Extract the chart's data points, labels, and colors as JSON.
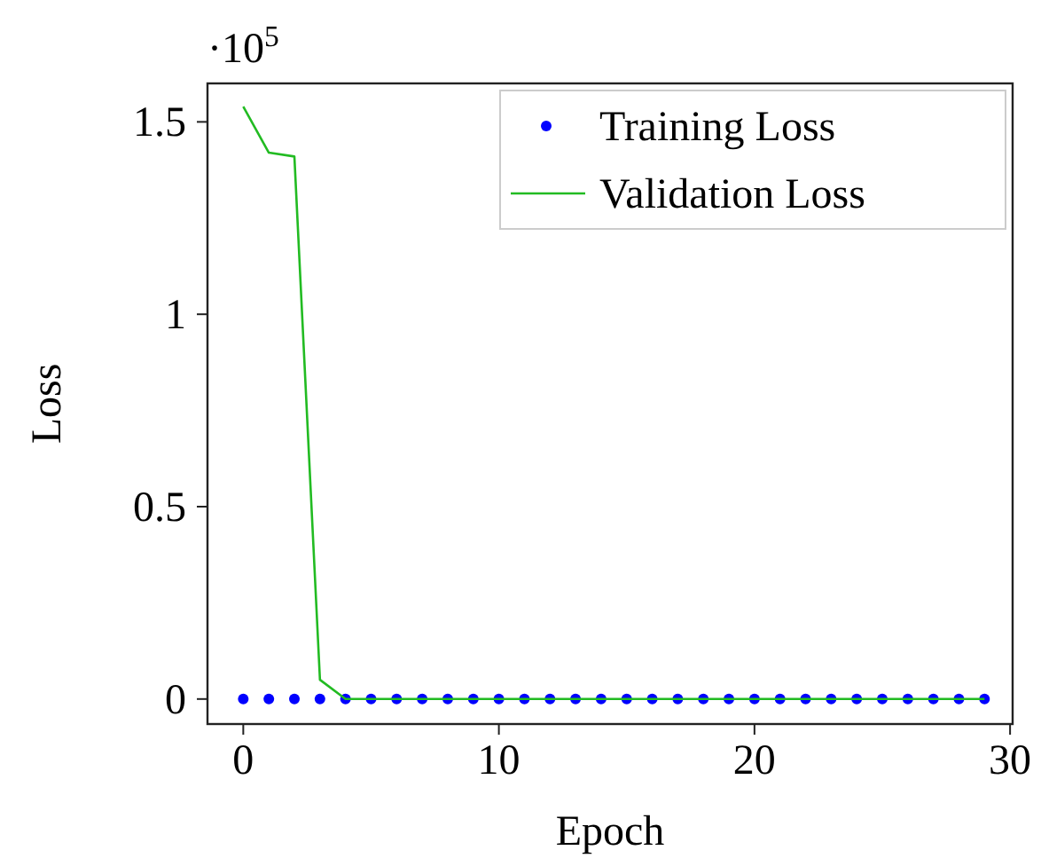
{
  "chart_data": {
    "type": "line",
    "xlabel": "Epoch",
    "ylabel": "Loss",
    "x": [
      0,
      1,
      2,
      3,
      4,
      5,
      6,
      7,
      8,
      9,
      10,
      11,
      12,
      13,
      14,
      15,
      16,
      17,
      18,
      19,
      20,
      21,
      22,
      23,
      24,
      25,
      26,
      27,
      28,
      29
    ],
    "series": [
      {
        "name": "Training Loss",
        "type": "scatter",
        "color": "#0000ff",
        "marker": "circle",
        "values": [
          0,
          0,
          0,
          0,
          0,
          0,
          0,
          0,
          0,
          0,
          0,
          0,
          0,
          0,
          0,
          0,
          0,
          0,
          0,
          0,
          0,
          0,
          0,
          0,
          0,
          0,
          0,
          0,
          0,
          0
        ]
      },
      {
        "name": "Validation Loss",
        "color": "#22bb22",
        "line_style": "solid",
        "values": [
          1.54,
          1.42,
          1.41,
          0.05,
          0,
          0,
          0,
          0,
          0,
          0,
          0,
          0,
          0,
          0,
          0,
          0,
          0,
          0,
          0,
          0,
          0,
          0,
          0,
          0,
          0,
          0,
          0,
          0,
          0,
          0
        ]
      }
    ],
    "xlim": [
      -1.4,
      30.1
    ],
    "xticks": [
      0,
      10,
      20,
      30
    ],
    "ylim": [
      -0.065,
      1.6
    ],
    "yticks": [
      0,
      0.5,
      1,
      1.5
    ],
    "annotations": [
      "·10$^{5}$"
    ],
    "grid": false,
    "legend": "top right"
  }
}
